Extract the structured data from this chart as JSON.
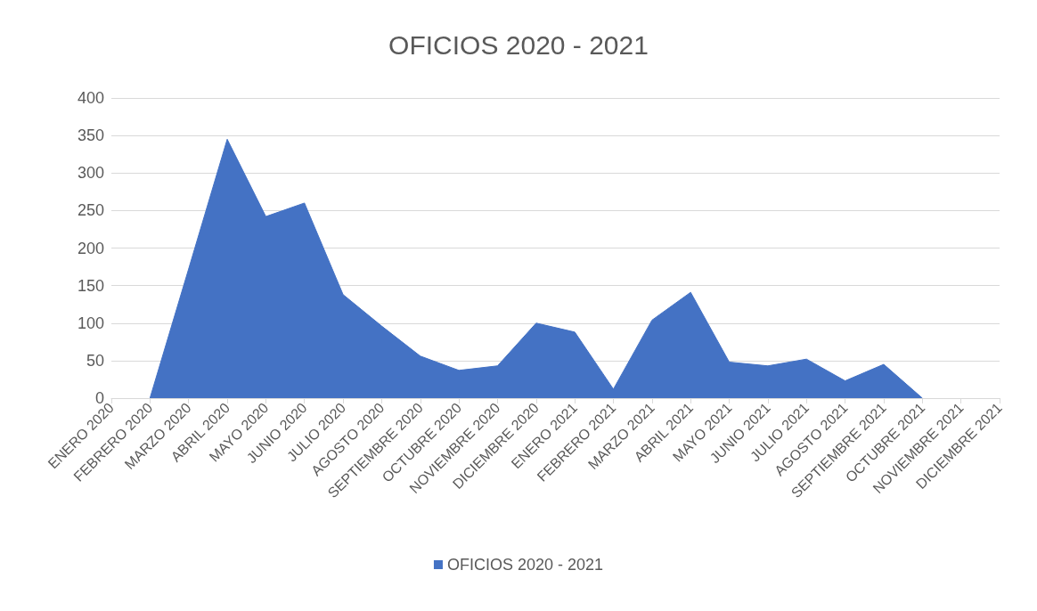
{
  "chart_data": {
    "type": "area",
    "title": "OFICIOS 2020 - 2021",
    "categories": [
      "ENERO 2020",
      "FEBRERO 2020",
      "MARZO 2020",
      "ABRIL 2020",
      "MAYO 2020",
      "JUNIO 2020",
      "JULIO 2020",
      "AGOSTO 2020",
      "SEPTIEMBRE 2020",
      "OCTUBRE 2020",
      "NOVIEMBRE 2020",
      "DICIEMBRE 2020",
      "ENERO 2021",
      "FEBRERO 2021",
      "MARZO 2021",
      "ABRIL 2021",
      "MAYO 2021",
      "JUNIO 2021",
      "JULIO 2021",
      "AGOSTO 2021",
      "SEPTIEMBRE 2021",
      "OCTUBRE 2021",
      "NOVIEMBRE 2021",
      "DICIEMBRE 2021"
    ],
    "series": [
      {
        "name": "OFICIOS 2020 - 2021",
        "color": "#4472c4",
        "values": [
          null,
          0,
          172,
          345,
          242,
          260,
          138,
          96,
          56,
          37,
          43,
          100,
          88,
          12,
          104,
          141,
          48,
          43,
          52,
          23,
          45,
          0,
          null,
          null
        ]
      }
    ],
    "ylim": [
      0,
      400
    ],
    "yticks": [
      0,
      50,
      100,
      150,
      200,
      250,
      300,
      350,
      400
    ],
    "grid": "y",
    "legend": "bottom",
    "marker": "none"
  }
}
